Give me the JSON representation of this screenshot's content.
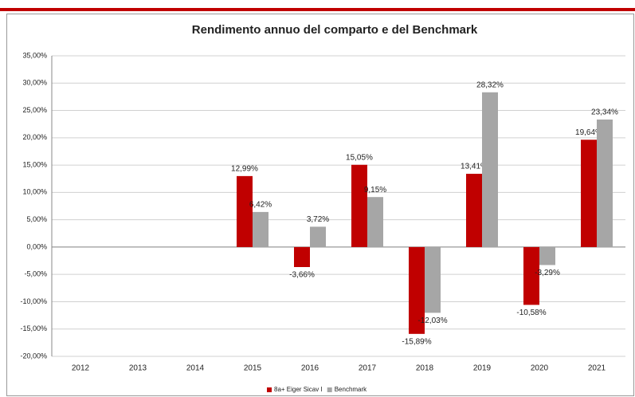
{
  "chart_data": {
    "type": "bar",
    "title": "Rendimento annuo del comparto e del Benchmark",
    "categories": [
      "2012",
      "2013",
      "2014",
      "2015",
      "2016",
      "2017",
      "2018",
      "2019",
      "2020",
      "2021"
    ],
    "series": [
      {
        "name": "8a+ Eiger Sicav I",
        "color": "#c00000",
        "values": [
          null,
          null,
          null,
          12.99,
          -3.66,
          15.05,
          -15.89,
          13.41,
          -10.58,
          19.64
        ],
        "value_labels": [
          null,
          null,
          null,
          "12,99%",
          "-3,66%",
          "15,05%",
          "-15,89%",
          "13,41%",
          "-10,58%",
          "19,64%"
        ]
      },
      {
        "name": "Benchmark",
        "color": "#a6a6a6",
        "values": [
          null,
          null,
          null,
          6.42,
          3.72,
          9.15,
          -12.03,
          28.32,
          -3.29,
          23.34
        ],
        "value_labels": [
          null,
          null,
          null,
          "6,42%",
          "3,72%",
          "9,15%",
          "-12,03%",
          "28,32%",
          "-3,29%",
          "23,34%"
        ]
      }
    ],
    "ylim": [
      -20,
      35
    ],
    "yticks": [
      {
        "value": -20,
        "label": "-20,00%"
      },
      {
        "value": -15,
        "label": "-15,00%"
      },
      {
        "value": -10,
        "label": "-10,00%"
      },
      {
        "value": -5,
        "label": "-5,00%"
      },
      {
        "value": 0,
        "label": "0,00%"
      },
      {
        "value": 5,
        "label": "5,00%"
      },
      {
        "value": 10,
        "label": "10,00%"
      },
      {
        "value": 15,
        "label": "15,00%"
      },
      {
        "value": 20,
        "label": "20,00%"
      },
      {
        "value": 25,
        "label": "25,00%"
      },
      {
        "value": 30,
        "label": "30,00%"
      },
      {
        "value": 35,
        "label": "35,00%"
      }
    ],
    "grid": true,
    "legend": "bottom"
  }
}
